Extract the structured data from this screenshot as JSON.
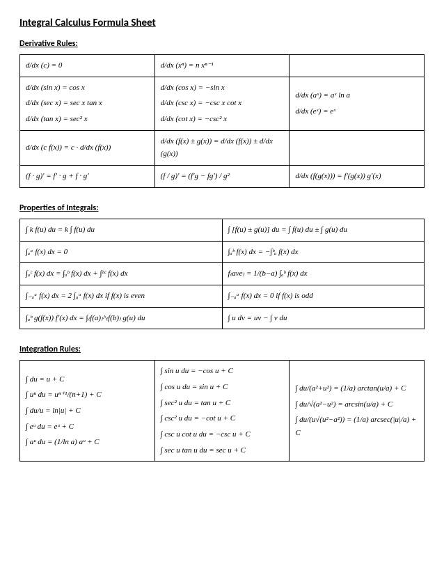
{
  "page": {
    "title": "Integral Calculus Formula Sheet",
    "background": "#ffffff",
    "text_color": "#000000",
    "border_color": "#000000",
    "font_family_heading": "Calibri, Arial, sans-serif",
    "font_family_math": "Cambria Math, Times New Roman, serif",
    "heading_fontsize": 15,
    "section_label_fontsize": 12,
    "cell_fontsize": 11
  },
  "sections": {
    "derivatives": {
      "label": "Derivative Rules:",
      "columns": 3,
      "rows": [
        [
          "d/dx (c) = 0",
          "d/dx (xⁿ) = n xⁿ⁻¹",
          ""
        ],
        [
          "d/dx (sin x) = cos x\nd/dx (sec x) = sec x tan x\nd/dx (tan x) = sec² x",
          "d/dx (cos x) = −sin x\nd/dx (csc x) = −csc x cot x\nd/dx (cot x) = −csc² x",
          "d/dx (aˣ) = aˣ ln a\nd/dx (eˣ) = eˣ"
        ],
        [
          "d/dx (c f(x)) = c · d/dx (f(x))",
          "d/dx (f(x) ± g(x)) = d/dx (f(x)) ± d/dx (g(x))",
          ""
        ],
        [
          "(f · g)' = f' · g + f · g'",
          "(f / g)' = (f'g − fg') / g²",
          "d/dx (f(g(x))) = f'(g(x)) g'(x)"
        ]
      ]
    },
    "properties": {
      "label": "Properties of Integrals:",
      "columns": 2,
      "rows": [
        [
          "∫ k f(u) du = k ∫ f(u) du",
          "∫ [f(u) ± g(u)] du = ∫ f(u) du ± ∫ g(u) du"
        ],
        [
          "∫ₐᵃ f(x) dx = 0",
          "∫ₐᵇ f(x) dx = −∫ᵇₐ f(x) dx"
        ],
        [
          "∫ₐᶜ f(x) dx = ∫ₐᵇ f(x) dx + ∫ᵇᶜ f(x) dx",
          "f₍ave₎ = 1/(b−a) ∫ₐᵇ f(x) dx"
        ],
        [
          "∫₋ₐᵃ f(x) dx = 2 ∫₀ᵃ f(x) dx  if f(x) is even",
          "∫₋ₐᵃ f(x) dx = 0  if f(x) is odd"
        ],
        [
          "∫ₐᵇ g(f(x)) f'(x) dx = ∫₍f(a)₎^₍f(b)₎ g(u) du",
          "∫ u dv = uv − ∫ v du"
        ]
      ]
    },
    "integration": {
      "label": "Integration Rules:",
      "columns": 3,
      "rows": [
        [
          "∫ du = u + C\n∫ uⁿ du = uⁿ⁺¹/(n+1) + C\n∫ du/u = ln|u| + C\n∫ eᵘ du = eᵘ + C\n∫ aᵘ du = (1/ln a) aᵘ + C",
          "∫ sin u du = −cos u + C\n∫ cos u du = sin u + C\n∫ sec² u du = tan u + C\n∫ csc² u du = −cot u + C\n∫ csc u cot u du = −csc u + C\n∫ sec u tan u du = sec u + C",
          "∫ du/(a²+u²) = (1/a) arctan(u/a) + C\n∫ du/√(a²−u²) = arcsin(u/a) + C\n∫ du/(u√(u²−a²)) = (1/a) arcsec(|u|/a) + C"
        ]
      ]
    }
  }
}
